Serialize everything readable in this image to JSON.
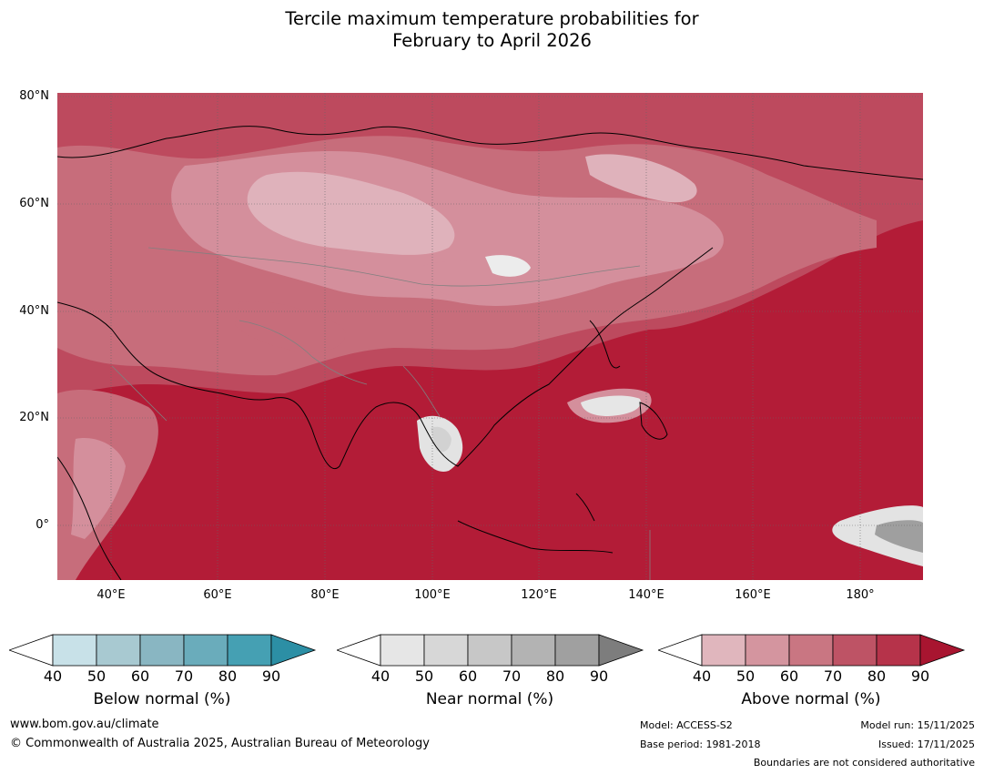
{
  "title": {
    "line1": "Tercile maximum temperature probabilities for",
    "line2": "February to April 2026"
  },
  "map": {
    "lat_labels": [
      "80°N",
      "60°N",
      "40°N",
      "20°N",
      "0°"
    ],
    "lon_labels": [
      "40°E",
      "60°E",
      "80°E",
      "100°E",
      "120°E",
      "140°E",
      "160°E",
      "180°"
    ],
    "dominant_fill": "#b31c37"
  },
  "legends": [
    {
      "title": "Below normal (%)",
      "ticks": [
        "40",
        "50",
        "60",
        "70",
        "80",
        "90"
      ],
      "colors": [
        "#ffffff",
        "#c8e1e8",
        "#a8c9d1",
        "#89b6c2",
        "#6aacbb",
        "#45a0b3",
        "#2c8fa5"
      ]
    },
    {
      "title": "Near normal (%)",
      "ticks": [
        "40",
        "50",
        "60",
        "70",
        "80",
        "90"
      ],
      "colors": [
        "#ffffff",
        "#e6e6e6",
        "#d7d7d7",
        "#c7c7c7",
        "#b3b3b3",
        "#a0a0a0",
        "#7d7d7d"
      ]
    },
    {
      "title": "Above normal (%)",
      "ticks": [
        "40",
        "50",
        "60",
        "70",
        "80",
        "90"
      ],
      "colors": [
        "#ffffff",
        "#e0b6bd",
        "#d4959f",
        "#c97682",
        "#be5365",
        "#b6334a",
        "#a81530"
      ]
    }
  ],
  "footer": {
    "url": "www.bom.gov.au/climate",
    "copyright": "© Commonwealth of Australia 2025, Australian Bureau of Meteorology",
    "model": "Model: ACCESS-S2",
    "base_period": "Base period: 1981-2018",
    "model_run": "Model run: 15/11/2025",
    "issued": "Issued: 17/11/2025",
    "disclaimer": "Boundaries are not considered authoritative"
  }
}
